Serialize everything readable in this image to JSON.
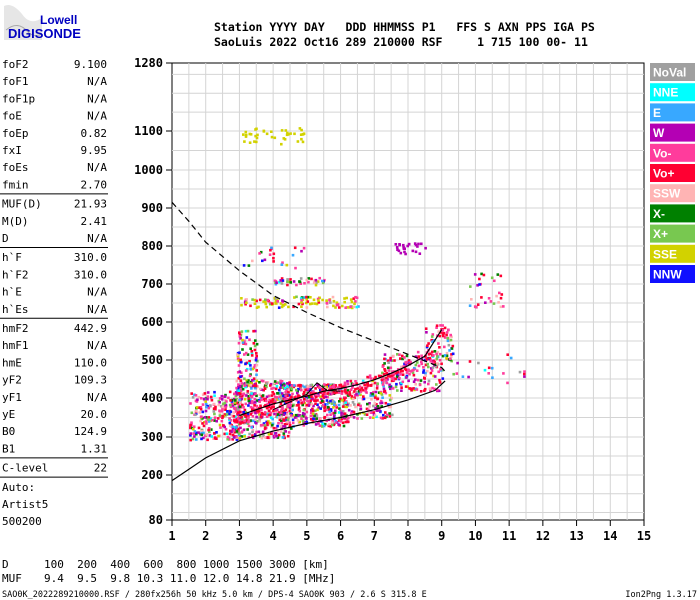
{
  "logo": {
    "line1": "Lowell",
    "line2": "DIGISONDE"
  },
  "header": {
    "line1": "Station YYYY DAY   DDD HHMMSS P1   FFS S AXN PPS IGA PS",
    "line2": "SaoLuis 2022 Oct16 289 210000 RSF     1 715 100 00- 11"
  },
  "params": [
    {
      "label": "foF2",
      "value": "9.100"
    },
    {
      "label": "foF1",
      "value": "N/A"
    },
    {
      "label": "foF1p",
      "value": "N/A"
    },
    {
      "label": "foE",
      "value": "N/A"
    },
    {
      "label": "foEp",
      "value": "0.82"
    },
    {
      "label": "fxI",
      "value": "9.95"
    },
    {
      "label": "foEs",
      "value": "N/A"
    },
    {
      "label": "fmin",
      "value": "2.70",
      "sep": true
    },
    {
      "label": "MUF(D)",
      "value": "21.93"
    },
    {
      "label": "M(D)",
      "value": "2.41"
    },
    {
      "label": "D",
      "value": "N/A",
      "sep": true
    },
    {
      "label": "h`F",
      "value": "310.0"
    },
    {
      "label": "h`F2",
      "value": "310.0"
    },
    {
      "label": "h`E",
      "value": "N/A"
    },
    {
      "label": "h`Es",
      "value": "N/A",
      "sep": true
    },
    {
      "label": "hmF2",
      "value": "442.9"
    },
    {
      "label": "hmF1",
      "value": "N/A"
    },
    {
      "label": "hmE",
      "value": "110.0"
    },
    {
      "label": "yF2",
      "value": "109.3"
    },
    {
      "label": "yF1",
      "value": "N/A"
    },
    {
      "label": "yE",
      "value": "20.0"
    },
    {
      "label": "B0",
      "value": "124.9"
    },
    {
      "label": "B1",
      "value": "1.31",
      "sep": true
    },
    {
      "label": "C-level",
      "value": "22",
      "sep": true
    }
  ],
  "auto": [
    "Auto:",
    "Artist5",
    "500200"
  ],
  "legend": [
    {
      "label": "NoVal",
      "color": "#a0a0a0"
    },
    {
      "label": "NNE",
      "color": "#00ffff"
    },
    {
      "label": "E",
      "color": "#38a8ff"
    },
    {
      "label": "W",
      "color": "#b400b4"
    },
    {
      "label": "Vo-",
      "color": "#ff3c9c"
    },
    {
      "label": "Vo+",
      "color": "#ff0032"
    },
    {
      "label": "SSW",
      "color": "#ffb4b4"
    },
    {
      "label": "X-",
      "color": "#008000"
    },
    {
      "label": "X+",
      "color": "#78c850"
    },
    {
      "label": "SSE",
      "color": "#d2d200"
    },
    {
      "label": "NNW",
      "color": "#1010ff"
    }
  ],
  "chart_data": {
    "type": "scatter",
    "xlim": [
      1,
      15
    ],
    "x_ticks": [
      "1",
      "2",
      "3",
      "4",
      "5",
      "6",
      "7",
      "8",
      "9",
      "10",
      "11",
      "12",
      "13",
      "14",
      "15"
    ],
    "y_ticks": [
      {
        "value": 80,
        "label": "80"
      },
      {
        "value": 200,
        "label": "200"
      },
      {
        "value": 300,
        "label": "300"
      },
      {
        "value": 400,
        "label": "400"
      },
      {
        "value": 500,
        "label": "500"
      },
      {
        "value": 600,
        "label": "600"
      },
      {
        "value": 700,
        "label": "700"
      },
      {
        "value": 800,
        "label": "800"
      },
      {
        "value": 900,
        "label": "900"
      },
      {
        "value": 1000,
        "label": "1000"
      },
      {
        "value": 1100,
        "label": "1100"
      },
      {
        "value": 1280,
        "label": "1280"
      }
    ],
    "grid": true,
    "ionogram_trace": [
      [
        3.0,
        355
      ],
      [
        3.5,
        370
      ],
      [
        4.0,
        385
      ],
      [
        4.5,
        395
      ],
      [
        5.0,
        405
      ],
      [
        5.5,
        418
      ],
      [
        6.0,
        425
      ],
      [
        6.5,
        435
      ],
      [
        7.0,
        448
      ],
      [
        7.5,
        465
      ],
      [
        8.0,
        485
      ],
      [
        8.5,
        510
      ],
      [
        9.0,
        580
      ]
    ],
    "f2_cusp": [
      [
        4.0,
        370
      ],
      [
        4.5,
        390
      ],
      [
        5.0,
        410
      ],
      [
        5.3,
        440
      ],
      [
        5.6,
        420
      ],
      [
        6.0,
        418
      ]
    ],
    "profile_line": [
      [
        1.0,
        185
      ],
      [
        1.5,
        215
      ],
      [
        2.0,
        245
      ],
      [
        3.0,
        290
      ],
      [
        4.0,
        315
      ],
      [
        5.0,
        335
      ],
      [
        6.0,
        350
      ],
      [
        7.0,
        370
      ],
      [
        8.0,
        395
      ],
      [
        8.8,
        420
      ],
      [
        9.1,
        445
      ]
    ],
    "muf_dashed": [
      [
        1.0,
        915
      ],
      [
        1.5,
        865
      ],
      [
        2.0,
        810
      ],
      [
        3.0,
        735
      ],
      [
        4.0,
        670
      ],
      [
        5.0,
        625
      ],
      [
        6.0,
        585
      ],
      [
        7.0,
        550
      ],
      [
        8.0,
        515
      ],
      [
        9.0,
        480
      ],
      [
        9.1,
        470
      ]
    ]
  },
  "footer": {
    "d_label": "D",
    "d_values": "100  200  400  600  800 1000 1500 3000 [km]",
    "muf_label": "MUF",
    "muf_values": "9.4  9.5  9.8 10.3 11.0 12.0 14.8 21.9 [MHz]",
    "file_info": "SAO0K_2022289210000.RSF / 280fx256h 50 kHz 5.0 km / DPS-4 SAO0K 903 / 2.6 S 315.8 E",
    "version": "Ion2Png 1.3.17"
  }
}
